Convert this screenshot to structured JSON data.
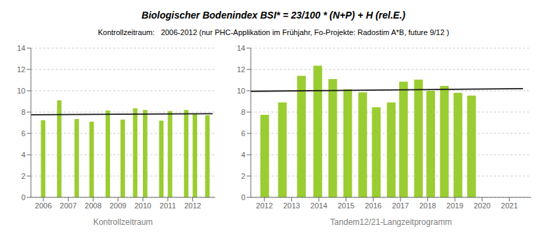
{
  "chart_data": [
    {
      "type": "bar",
      "title": "Biologischer Bodenindex BSI* = 23/100 * (N+P) + H  (rel.E.)",
      "subtitle": "Kontrollzeitraum:   2006-2012 (nur PHC-Applikation im Frühjahr, Fo-Projekte: Radostim A*B, future 9/12 )",
      "xlabel": "Kontrollzeitraum",
      "series": [
        {
          "type": "bar",
          "color": "#9acd32",
          "x": [
            2006.0,
            2006.65,
            2007.35,
            2007.95,
            2008.6,
            2009.2,
            2009.7,
            2010.1,
            2010.75,
            2011.1,
            2011.75,
            2012.1,
            2012.6
          ],
          "values": [
            7.25,
            9.1,
            7.35,
            7.1,
            8.15,
            7.3,
            8.35,
            8.2,
            7.2,
            8.1,
            8.2,
            7.8,
            7.7
          ]
        },
        {
          "type": "line",
          "color": "#1a1a1a",
          "x": [
            2005.5,
            2012.8
          ],
          "values": [
            7.75,
            7.85
          ]
        }
      ],
      "xlim": [
        2005.5,
        2012.9
      ],
      "xticks": [
        2006,
        2007,
        2008,
        2009,
        2010,
        2011,
        2012
      ],
      "ylim": [
        0,
        14
      ],
      "yticks": [
        0,
        2,
        4,
        6,
        8,
        10,
        12,
        14
      ],
      "grid": true
    },
    {
      "type": "bar",
      "xlabel": "Tandem12/21-Langzeitprogramm",
      "series": [
        {
          "type": "bar",
          "color": "#9acd32",
          "x": [
            2012.0,
            2012.65,
            2013.35,
            2013.95,
            2014.5,
            2015.05,
            2015.6,
            2016.1,
            2016.65,
            2017.1,
            2017.65,
            2018.1,
            2018.6,
            2019.1,
            2019.6
          ],
          "values": [
            7.75,
            8.9,
            11.4,
            12.35,
            11.1,
            10.15,
            9.85,
            8.45,
            8.9,
            10.85,
            11.05,
            10.0,
            10.45,
            9.8,
            9.55
          ]
        },
        {
          "type": "line",
          "color": "#1a1a1a",
          "x": [
            2011.5,
            2021.5
          ],
          "values": [
            9.95,
            10.2
          ]
        }
      ],
      "xlim": [
        2011.5,
        2021.8
      ],
      "xticks": [
        2012,
        2013,
        2014,
        2015,
        2016,
        2017,
        2018,
        2019,
        2020,
        2021
      ],
      "ylim": [
        0,
        14
      ],
      "yticks": [
        0,
        2,
        4,
        6,
        8,
        10,
        12,
        14
      ],
      "grid": true
    }
  ]
}
